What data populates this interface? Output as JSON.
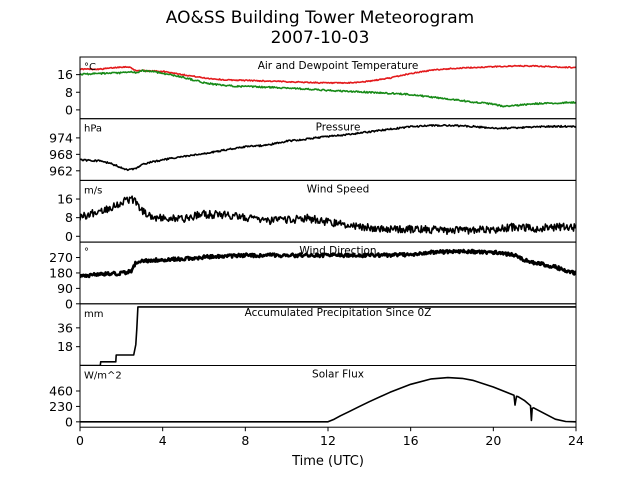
{
  "title": "AO&SS Building Tower Meteorogram",
  "subtitle": "2007-10-03",
  "xlabel": "Time (UTC)",
  "chart_data": [
    {
      "type": "line",
      "title": "Air and Dewpoint Temperature",
      "unit": "°C",
      "yticks": [
        0,
        8,
        16
      ],
      "ylim": [
        -4,
        24
      ],
      "series": [
        {
          "color": "#e31a1c",
          "noise": 0.25,
          "x": [
            0,
            1,
            1.5,
            2,
            2.4,
            2.6,
            2.8,
            3,
            3.5,
            4,
            5,
            6,
            7,
            8,
            10,
            12,
            13,
            14,
            15,
            16,
            17,
            18,
            19,
            20,
            21,
            22,
            23,
            24
          ],
          "y": [
            18.5,
            18.5,
            19,
            19.5,
            19.5,
            18.2,
            17.8,
            17.8,
            17.6,
            17.5,
            16,
            14.5,
            13.6,
            13.4,
            12.8,
            12.2,
            12.2,
            13,
            14.5,
            16.5,
            18,
            18.8,
            19.2,
            19.6,
            19.9,
            19.9,
            19.5,
            19.2
          ]
        },
        {
          "color": "#178a17",
          "noise": 0.35,
          "x": [
            0,
            1,
            2,
            2.5,
            2.8,
            3,
            3.5,
            4,
            5,
            6,
            7,
            8,
            10,
            12,
            14,
            16,
            17,
            18,
            19,
            20,
            20.5,
            21,
            22,
            23,
            24
          ],
          "y": [
            16.2,
            16.5,
            16.8,
            17.2,
            16.8,
            17.8,
            17.5,
            16.6,
            14.8,
            12.3,
            11,
            10.6,
            10,
            8.8,
            8,
            7,
            5.8,
            4.8,
            3.6,
            2.6,
            1.6,
            1.9,
            2.8,
            3,
            3.5
          ]
        }
      ]
    },
    {
      "type": "line",
      "title": "Pressure",
      "unit": "hPa",
      "yticks": [
        962,
        968,
        974
      ],
      "ylim": [
        958.5,
        981
      ],
      "series": [
        {
          "color": "#000000",
          "noise": 0.3,
          "x": [
            0,
            1,
            1.5,
            2,
            2.3,
            2.7,
            3,
            3.5,
            4,
            5,
            6,
            7,
            8,
            9,
            10,
            11,
            12,
            13,
            14,
            15,
            16,
            17,
            18,
            19,
            20,
            21,
            22,
            23,
            24
          ],
          "y": [
            966,
            965.6,
            964.6,
            963.2,
            962.3,
            962.7,
            964.2,
            965.3,
            966,
            967.2,
            968.2,
            969.6,
            970.8,
            971.3,
            972.8,
            973.6,
            974.6,
            975.2,
            976.2,
            977.2,
            978.1,
            978.5,
            978.5,
            978.2,
            977.5,
            977.6,
            978,
            978.2,
            978.2
          ]
        }
      ]
    },
    {
      "type": "line",
      "title": "Wind Speed",
      "unit": "m/s",
      "yticks": [
        0,
        8,
        16
      ],
      "ylim": [
        -2.5,
        24
      ],
      "series": [
        {
          "color": "#000000",
          "noise": 1.7,
          "x": [
            0,
            0.5,
            1,
            1.5,
            2,
            2.3,
            2.6,
            2.8,
            3,
            3.5,
            4,
            5,
            6,
            7,
            8,
            9,
            10,
            11,
            12,
            13,
            14,
            15,
            16,
            17,
            18,
            19,
            20,
            21,
            22,
            23,
            24
          ],
          "y": [
            8.5,
            9.5,
            11,
            12.5,
            14.5,
            16,
            15.5,
            14,
            11,
            8.5,
            7.6,
            7.6,
            9.5,
            9.2,
            8.2,
            6.5,
            7,
            7.8,
            6,
            4.8,
            3.8,
            3.2,
            3,
            2.8,
            2.5,
            2.7,
            2.6,
            4,
            3.3,
            4,
            3.6
          ]
        }
      ]
    },
    {
      "type": "scatter",
      "title": "Wind Direction",
      "unit": "°",
      "yticks": [
        0,
        90,
        180,
        270
      ],
      "ylim": [
        0,
        360
      ],
      "series": [
        {
          "color": "#000000",
          "noise": 10,
          "x": [
            0,
            1,
            2,
            2.5,
            2.7,
            3,
            4,
            5,
            6,
            8,
            10,
            12,
            14,
            16,
            17,
            18,
            19,
            20,
            21,
            21.5,
            22,
            23,
            24
          ],
          "y": [
            160,
            172,
            178,
            190,
            240,
            250,
            258,
            262,
            272,
            283,
            283,
            283,
            283,
            287,
            300,
            305,
            305,
            300,
            285,
            255,
            240,
            215,
            175
          ]
        }
      ]
    },
    {
      "type": "line",
      "title": "Accumulated Precipitation Since 0Z",
      "unit": "mm",
      "yticks": [
        18,
        36
      ],
      "ylim": [
        0,
        59
      ],
      "series": [
        {
          "color": "#000000",
          "noise": 0,
          "x": [
            0,
            0.98,
            1,
            1.73,
            1.75,
            2.6,
            2.7,
            2.75,
            2.8,
            24
          ],
          "y": [
            0,
            0,
            3.5,
            3.5,
            10,
            10,
            20,
            35,
            56,
            56
          ]
        }
      ]
    },
    {
      "type": "area",
      "title": "Solar Flux",
      "unit": "W/m^2",
      "yticks": [
        0,
        230,
        460
      ],
      "ylim": [
        -80,
        840
      ],
      "series": [
        {
          "color": "#000000",
          "noise": 0,
          "x": [
            0,
            12,
            12.3,
            12.6,
            13,
            13.5,
            14,
            15,
            16,
            17,
            17.8,
            18.5,
            19,
            20,
            21,
            21.05,
            21.12,
            21.2,
            21.5,
            21.8,
            21.84,
            21.88,
            21.95,
            22,
            22.5,
            23,
            23.5,
            24
          ],
          "y": [
            0,
            0,
            40,
            90,
            150,
            225,
            300,
            440,
            560,
            640,
            660,
            648,
            620,
            520,
            395,
            250,
            380,
            375,
            320,
            240,
            20,
            200,
            210,
            200,
            120,
            40,
            5,
            0
          ]
        }
      ]
    }
  ]
}
